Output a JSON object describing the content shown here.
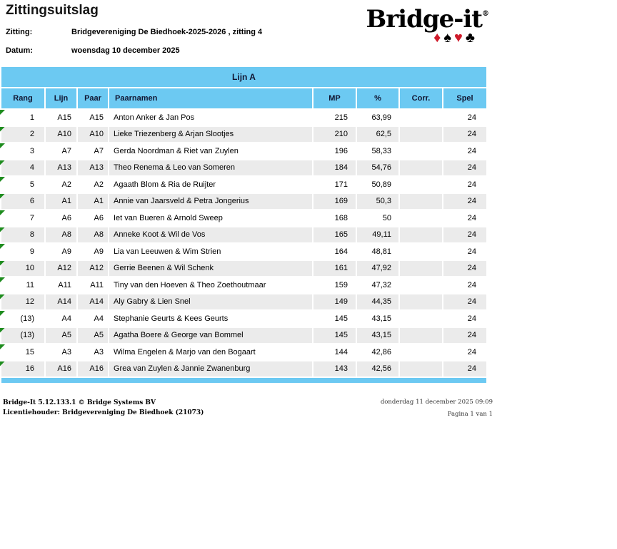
{
  "page": {
    "title": "Zittingsuitslag"
  },
  "meta": {
    "zitting_label": "Zitting:",
    "zitting_value": "Bridgevereniging De Biedhoek-2025-2026 , zitting 4",
    "datum_label": "Datum:",
    "datum_value": "woensdag 10 december 2025"
  },
  "logo": {
    "text": "Bridge-it",
    "registered": "®",
    "suits": [
      {
        "name": "diamond",
        "glyph": "♦",
        "color": "red"
      },
      {
        "name": "spade",
        "glyph": "♠",
        "color": "black"
      },
      {
        "name": "heart",
        "glyph": "♥",
        "color": "red"
      },
      {
        "name": "club",
        "glyph": "♣",
        "color": "black"
      }
    ]
  },
  "table": {
    "group_header": "Lijn A",
    "columns": [
      "Rang",
      "Lijn",
      "Paar",
      "Paarnamen",
      "MP",
      "%",
      "Corr.",
      "Spel"
    ],
    "rows": [
      {
        "rang": "1",
        "lijn": "A15",
        "paar": "A15",
        "paarnamen": "Anton Anker & Jan Pos",
        "mp": "215",
        "pct": "63,99",
        "corr": "",
        "spel": "24"
      },
      {
        "rang": "2",
        "lijn": "A10",
        "paar": "A10",
        "paarnamen": "Lieke Triezenberg & Arjan Slootjes",
        "mp": "210",
        "pct": "62,5",
        "corr": "",
        "spel": "24"
      },
      {
        "rang": "3",
        "lijn": "A7",
        "paar": "A7",
        "paarnamen": "Gerda Noordman & Riet van Zuylen",
        "mp": "196",
        "pct": "58,33",
        "corr": "",
        "spel": "24"
      },
      {
        "rang": "4",
        "lijn": "A13",
        "paar": "A13",
        "paarnamen": "Theo Renema & Leo van Someren",
        "mp": "184",
        "pct": "54,76",
        "corr": "",
        "spel": "24"
      },
      {
        "rang": "5",
        "lijn": "A2",
        "paar": "A2",
        "paarnamen": "Agaath Blom & Ria de Ruijter",
        "mp": "171",
        "pct": "50,89",
        "corr": "",
        "spel": "24"
      },
      {
        "rang": "6",
        "lijn": "A1",
        "paar": "A1",
        "paarnamen": "Annie van Jaarsveld & Petra Jongerius",
        "mp": "169",
        "pct": "50,3",
        "corr": "",
        "spel": "24"
      },
      {
        "rang": "7",
        "lijn": "A6",
        "paar": "A6",
        "paarnamen": "Iet van Bueren & Arnold Sweep",
        "mp": "168",
        "pct": "50",
        "corr": "",
        "spel": "24"
      },
      {
        "rang": "8",
        "lijn": "A8",
        "paar": "A8",
        "paarnamen": "Anneke Koot & Wil de Vos",
        "mp": "165",
        "pct": "49,11",
        "corr": "",
        "spel": "24"
      },
      {
        "rang": "9",
        "lijn": "A9",
        "paar": "A9",
        "paarnamen": "Lia van Leeuwen & Wim Strien",
        "mp": "164",
        "pct": "48,81",
        "corr": "",
        "spel": "24"
      },
      {
        "rang": "10",
        "lijn": "A12",
        "paar": "A12",
        "paarnamen": "Gerrie Beenen & Wil Schenk",
        "mp": "161",
        "pct": "47,92",
        "corr": "",
        "spel": "24"
      },
      {
        "rang": "11",
        "lijn": "A11",
        "paar": "A11",
        "paarnamen": "Tiny van den Hoeven & Theo Zoethoutmaar",
        "mp": "159",
        "pct": "47,32",
        "corr": "",
        "spel": "24"
      },
      {
        "rang": "12",
        "lijn": "A14",
        "paar": "A14",
        "paarnamen": "Aly Gabry & Lien Snel",
        "mp": "149",
        "pct": "44,35",
        "corr": "",
        "spel": "24"
      },
      {
        "rang": "(13)",
        "lijn": "A4",
        "paar": "A4",
        "paarnamen": "Stephanie Geurts & Kees Geurts",
        "mp": "145",
        "pct": "43,15",
        "corr": "",
        "spel": "24"
      },
      {
        "rang": "(13)",
        "lijn": "A5",
        "paar": "A5",
        "paarnamen": "Agatha Boere & George van Bommel",
        "mp": "145",
        "pct": "43,15",
        "corr": "",
        "spel": "24"
      },
      {
        "rang": "15",
        "lijn": "A3",
        "paar": "A3",
        "paarnamen": "Wilma Engelen & Marjo van den Bogaart",
        "mp": "144",
        "pct": "42,86",
        "corr": "",
        "spel": "24"
      },
      {
        "rang": "16",
        "lijn": "A16",
        "paar": "A16",
        "paarnamen": "Grea van Zuylen & Jannie Zwanenburg",
        "mp": "143",
        "pct": "42,56",
        "corr": "",
        "spel": "24"
      }
    ]
  },
  "footer": {
    "left_line1": "Bridge-It 5.12.133.1 © Bridge Systems BV",
    "left_line2": "Licentiehouder: Bridgevereniging De Biedhoek (21073)",
    "right_line1": "donderdag 11 december 2025 09:09",
    "right_line2": "Pagina 1 van 1"
  },
  "colors": {
    "accent_blue": "#6cc9f2",
    "row_gray": "#ebebeb",
    "marker_green": "#1e8c1e",
    "suit_red": "#cf1b2b"
  }
}
